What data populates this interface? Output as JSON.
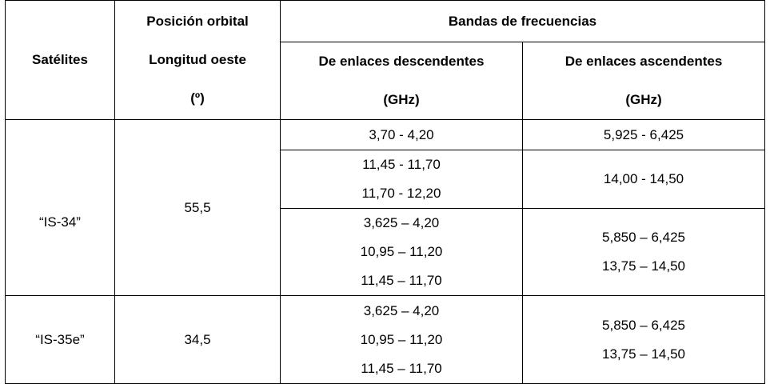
{
  "table": {
    "headers": {
      "satellites": "Satélites",
      "orbital_position_lines": [
        "Posición orbital",
        "Longitud oeste",
        "(º)"
      ],
      "frequency_bands": "Bandas de frecuencias",
      "downlink_lines": [
        "De enlaces descendentes",
        "(GHz)"
      ],
      "uplink_lines": [
        "De enlaces ascendentes",
        "(GHz)"
      ]
    },
    "satellites": [
      {
        "name": "“IS-34”",
        "orbital_position": "55,5",
        "bands": [
          {
            "downlink": [
              "3,70 - 4,20"
            ],
            "uplink": [
              "5,925 - 6,425"
            ]
          },
          {
            "downlink": [
              "11,45 - 11,70",
              "11,70 - 12,20"
            ],
            "uplink": [
              "14,00 - 14,50"
            ]
          },
          {
            "downlink": [
              "3,625 – 4,20",
              "10,95 – 11,20",
              "11,45 – 11,70"
            ],
            "uplink": [
              "5,850 – 6,425",
              "13,75 – 14,50"
            ]
          }
        ]
      },
      {
        "name": "“IS-35e”",
        "orbital_position": "34,5",
        "bands": [
          {
            "downlink": [
              "3,625 – 4,20",
              "10,95 – 11,20",
              "11,45 – 11,70"
            ],
            "uplink": [
              "5,850 – 6,425",
              "13,75 – 14,50"
            ]
          }
        ]
      }
    ]
  }
}
